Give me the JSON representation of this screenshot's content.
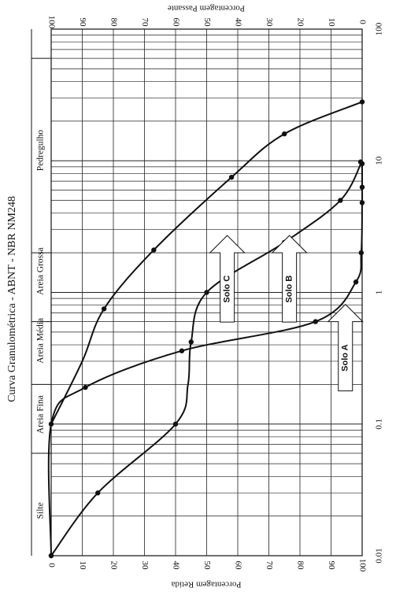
{
  "chart_data": {
    "type": "line",
    "title": "Curva Granulométrica - ABNT - NBR NM248",
    "x_scale": "log",
    "xlim": [
      0.01,
      100
    ],
    "x_ticks": [
      "0.01",
      "0.1",
      "1",
      "10",
      "100"
    ],
    "ylim": [
      0,
      100
    ],
    "left_axis_label": "Porcentagem Passante",
    "right_axis_label": "Porcentagem Retida",
    "left_ticks": [
      "100",
      "90",
      "80",
      "70",
      "60",
      "50",
      "40",
      "30",
      "20",
      "10",
      "0"
    ],
    "right_ticks": [
      "0",
      "10",
      "20",
      "30",
      "40",
      "50",
      "60",
      "70",
      "80",
      "90",
      "100"
    ],
    "zones": [
      {
        "label": "Silte",
        "x": 0.022
      },
      {
        "label": "Areia Fina",
        "x": 0.118
      },
      {
        "label": "Areia Média",
        "x": 0.43
      },
      {
        "label": "Areia Grossa",
        "x": 1.45
      },
      {
        "label": "Pedregulho",
        "x": 12
      }
    ],
    "zone_boundaries": [
      0.06,
      0.2,
      0.6,
      2.0,
      60
    ],
    "series": [
      {
        "name": "Solo A",
        "points": [
          [
            0.01,
            100
          ],
          [
            0.1,
            100
          ],
          [
            0.19,
            89
          ],
          [
            0.36,
            58
          ],
          [
            0.6,
            15
          ],
          [
            1.2,
            2
          ],
          [
            2.0,
            0.3
          ],
          [
            4.8,
            0
          ],
          [
            6.3,
            0
          ],
          [
            9.5,
            0
          ]
        ],
        "markers": [
          [
            0.01,
            100
          ],
          [
            0.19,
            89
          ],
          [
            0.36,
            58
          ],
          [
            0.6,
            15
          ],
          [
            1.2,
            2
          ],
          [
            2.0,
            0.3
          ],
          [
            4.8,
            0
          ],
          [
            6.3,
            0
          ],
          [
            9.5,
            0
          ]
        ]
      },
      {
        "name": "Solo B",
        "points": [
          [
            0.01,
            100
          ],
          [
            0.03,
            85
          ],
          [
            0.1,
            60
          ],
          [
            0.2,
            56
          ],
          [
            0.42,
            55
          ],
          [
            1.0,
            50
          ],
          [
            2.4,
            25
          ],
          [
            5.0,
            7
          ],
          [
            10,
            0
          ]
        ],
        "markers": [
          [
            0.01,
            100
          ],
          [
            0.03,
            85
          ],
          [
            0.1,
            60
          ],
          [
            0.42,
            55
          ],
          [
            1.0,
            50
          ],
          [
            2.4,
            25
          ],
          [
            5.0,
            7
          ],
          [
            9.8,
            0.5
          ]
        ]
      },
      {
        "name": "Solo C",
        "points": [
          [
            0.1,
            100
          ],
          [
            0.3,
            90
          ],
          [
            0.75,
            83
          ],
          [
            2.1,
            67
          ],
          [
            7.5,
            42
          ],
          [
            16,
            25
          ],
          [
            28,
            0
          ]
        ],
        "markers": [
          [
            0.1,
            100
          ],
          [
            0.75,
            83
          ],
          [
            2.1,
            67
          ],
          [
            7.5,
            42
          ],
          [
            16,
            25
          ],
          [
            28,
            0
          ]
        ]
      }
    ],
    "annotations": [
      {
        "label": "Solo A",
        "x": 0.6,
        "y": 15
      },
      {
        "label": "Solo B",
        "x": 2.0,
        "y": 33
      },
      {
        "label": "Solo C",
        "x": 2.0,
        "y": 53
      }
    ]
  }
}
